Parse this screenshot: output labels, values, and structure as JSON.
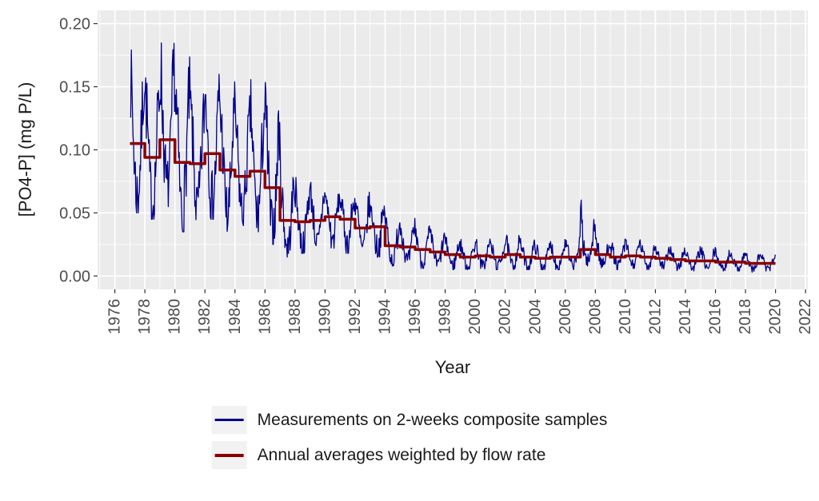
{
  "page": {
    "background": "#FFFFFF"
  },
  "legend": {
    "key_background": "#F2F2F2"
  },
  "chart_data": {
    "type": "line",
    "title": "",
    "xlabel": "Year",
    "ylabel": "[PO4-P] (mg P/L)",
    "grid": true,
    "legend_position": "bottom",
    "panel_background": "#EBEBEB",
    "gridline_color": "#FFFFFF",
    "tick_color": "#333333",
    "tick_label_color": "#4D4D4D",
    "axis_title_color": "#1A1A1A",
    "x_domain": [
      1974.85,
      2022.15
    ],
    "y_domain": [
      -0.0105,
      0.2105
    ],
    "x_major_ticks": [
      1976,
      1978,
      1980,
      1982,
      1984,
      1986,
      1988,
      1990,
      1992,
      1994,
      1996,
      1998,
      2000,
      2002,
      2004,
      2006,
      2008,
      2010,
      2012,
      2014,
      2016,
      2018,
      2020,
      2022
    ],
    "x_minor_gridlines": [
      1975,
      1977,
      1979,
      1981,
      1983,
      1985,
      1987,
      1989,
      1991,
      1993,
      1995,
      1997,
      1999,
      2001,
      2003,
      2005,
      2007,
      2009,
      2011,
      2013,
      2015,
      2017,
      2019,
      2021
    ],
    "y_major_ticks": {
      "values": [
        0,
        0.05,
        0.1,
        0.15,
        0.2
      ],
      "labels": [
        "0.00",
        "0.05",
        "0.10",
        "0.15",
        "0.20"
      ]
    },
    "y_minor_gridlines": [
      0.025,
      0.075,
      0.125,
      0.175
    ],
    "series": [
      {
        "name": "Measurements on 2-weeks composite samples",
        "color": "#00008B",
        "style": "line",
        "samples_per_year": 26
      },
      {
        "name": "Annual averages weighted by flow rate",
        "color": "#8B0000",
        "style": "step"
      }
    ],
    "years": [
      1977,
      1978,
      1979,
      1980,
      1981,
      1982,
      1983,
      1984,
      1985,
      1986,
      1987,
      1988,
      1989,
      1990,
      1991,
      1992,
      1993,
      1994,
      1995,
      1996,
      1997,
      1998,
      1999,
      2000,
      2001,
      2002,
      2003,
      2004,
      2005,
      2006,
      2007,
      2008,
      2009,
      2010,
      2011,
      2012,
      2013,
      2014,
      2015,
      2016,
      2017,
      2018,
      2019
    ],
    "annual_avg_mgPL": [
      0.105,
      0.094,
      0.108,
      0.09,
      0.089,
      0.097,
      0.084,
      0.079,
      0.083,
      0.07,
      0.044,
      0.043,
      0.044,
      0.047,
      0.045,
      0.038,
      0.039,
      0.024,
      0.023,
      0.021,
      0.019,
      0.017,
      0.015,
      0.016,
      0.015,
      0.017,
      0.015,
      0.014,
      0.015,
      0.015,
      0.021,
      0.017,
      0.015,
      0.016,
      0.015,
      0.014,
      0.013,
      0.012,
      0.012,
      0.011,
      0.011,
      0.01,
      0.01
    ],
    "annual_min_mgPL": [
      0.05,
      0.045,
      0.055,
      0.035,
      0.04,
      0.045,
      0.035,
      0.04,
      0.035,
      0.025,
      0.015,
      0.018,
      0.018,
      0.022,
      0.018,
      0.015,
      0.015,
      0.008,
      0.008,
      0.006,
      0.006,
      0.005,
      0.005,
      0.005,
      0.005,
      0.005,
      0.005,
      0.005,
      0.005,
      0.005,
      0.008,
      0.006,
      0.005,
      0.006,
      0.005,
      0.005,
      0.004,
      0.004,
      0.004,
      0.004,
      0.004,
      0.003,
      0.003
    ],
    "annual_max_mgPL": [
      0.19,
      0.175,
      0.201,
      0.175,
      0.16,
      0.175,
      0.155,
      0.145,
      0.16,
      0.16,
      0.095,
      0.08,
      0.08,
      0.07,
      0.068,
      0.07,
      0.06,
      0.055,
      0.05,
      0.042,
      0.038,
      0.032,
      0.03,
      0.032,
      0.03,
      0.035,
      0.03,
      0.028,
      0.03,
      0.032,
      0.072,
      0.035,
      0.03,
      0.03,
      0.028,
      0.026,
      0.025,
      0.024,
      0.024,
      0.022,
      0.022,
      0.02,
      0.02
    ]
  }
}
